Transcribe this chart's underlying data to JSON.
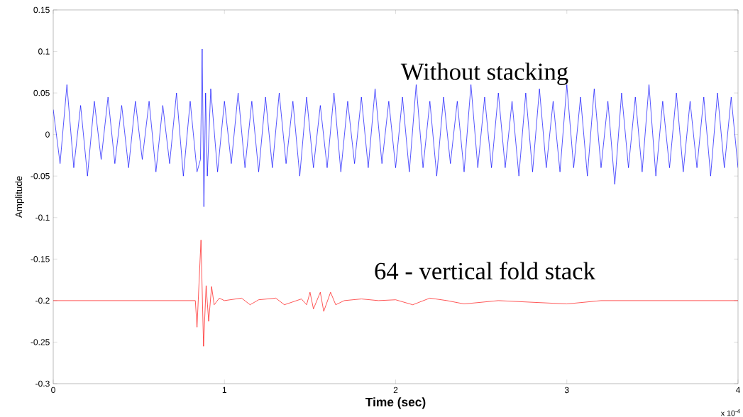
{
  "chart_data": {
    "type": "line",
    "xlabel": "Time (sec)",
    "ylabel": "Amplitude",
    "xlim": [
      0,
      4
    ],
    "xticks": [
      0,
      1,
      2,
      3,
      4
    ],
    "ylim": [
      -0.3,
      0.15
    ],
    "yticks": [
      -0.3,
      -0.25,
      -0.2,
      -0.15,
      -0.1,
      -0.05,
      0,
      0.05,
      0.1,
      0.15
    ],
    "annotations": [
      "x 10$^{-4}$"
    ],
    "series": [
      {
        "name": "Without stacking",
        "color": "#0000ff",
        "x": [
          0,
          0.04,
          0.08,
          0.12,
          0.16,
          0.2,
          0.24,
          0.28,
          0.32,
          0.36,
          0.4,
          0.44,
          0.48,
          0.52,
          0.56,
          0.6,
          0.64,
          0.68,
          0.72,
          0.76,
          0.8,
          0.84,
          0.86,
          0.87,
          0.88,
          0.89,
          0.9,
          0.92,
          0.96,
          1.0,
          1.04,
          1.08,
          1.12,
          1.16,
          1.2,
          1.24,
          1.28,
          1.32,
          1.36,
          1.4,
          1.44,
          1.48,
          1.52,
          1.56,
          1.6,
          1.64,
          1.68,
          1.72,
          1.76,
          1.8,
          1.84,
          1.88,
          1.92,
          1.96,
          2.0,
          2.04,
          2.08,
          2.12,
          2.16,
          2.2,
          2.24,
          2.28,
          2.32,
          2.36,
          2.4,
          2.44,
          2.48,
          2.52,
          2.56,
          2.6,
          2.64,
          2.68,
          2.72,
          2.76,
          2.8,
          2.84,
          2.88,
          2.92,
          2.96,
          3.0,
          3.04,
          3.08,
          3.12,
          3.16,
          3.2,
          3.24,
          3.28,
          3.32,
          3.36,
          3.4,
          3.44,
          3.48,
          3.52,
          3.56,
          3.6,
          3.64,
          3.68,
          3.72,
          3.76,
          3.8,
          3.84,
          3.88,
          3.92,
          3.96,
          4.0
        ],
        "values": [
          0.03,
          -0.035,
          0.06,
          -0.04,
          0.035,
          -0.05,
          0.04,
          -0.03,
          0.045,
          -0.035,
          0.035,
          -0.04,
          0.04,
          -0.03,
          0.04,
          -0.045,
          0.035,
          -0.035,
          0.05,
          -0.05,
          0.04,
          -0.045,
          -0.03,
          0.103,
          -0.087,
          0.05,
          -0.05,
          0.055,
          -0.045,
          0.04,
          -0.035,
          0.05,
          -0.04,
          0.04,
          -0.045,
          0.045,
          -0.04,
          0.05,
          -0.035,
          0.04,
          -0.05,
          0.045,
          -0.04,
          0.035,
          -0.04,
          0.05,
          -0.045,
          0.04,
          -0.035,
          0.045,
          -0.04,
          0.055,
          -0.035,
          0.04,
          -0.04,
          0.045,
          -0.045,
          0.06,
          -0.04,
          0.04,
          -0.05,
          0.045,
          -0.035,
          0.04,
          -0.045,
          0.06,
          -0.04,
          0.045,
          -0.04,
          0.05,
          -0.04,
          0.04,
          -0.05,
          0.05,
          -0.045,
          0.055,
          -0.04,
          0.04,
          -0.045,
          0.06,
          -0.04,
          0.045,
          -0.05,
          0.055,
          -0.04,
          0.04,
          -0.06,
          0.05,
          -0.04,
          0.045,
          -0.045,
          0.06,
          -0.05,
          0.04,
          -0.04,
          0.05,
          -0.045,
          0.04,
          -0.04,
          0.045,
          -0.05,
          0.05,
          -0.04,
          0.045,
          -0.04
        ]
      },
      {
        "name": "64 - vertical fold stack",
        "color": "#ff0000",
        "x": [
          0,
          0.83,
          0.84,
          0.863,
          0.878,
          0.893,
          0.908,
          0.925,
          0.94,
          0.97,
          1.0,
          1.1,
          1.15,
          1.2,
          1.3,
          1.35,
          1.45,
          1.48,
          1.5,
          1.52,
          1.56,
          1.58,
          1.62,
          1.65,
          1.7,
          1.8,
          1.9,
          2.0,
          2.1,
          2.2,
          2.3,
          2.4,
          2.6,
          3.0,
          3.2,
          4.0
        ],
        "values": [
          -0.2,
          -0.2,
          -0.232,
          -0.127,
          -0.255,
          -0.182,
          -0.225,
          -0.183,
          -0.205,
          -0.197,
          -0.2,
          -0.197,
          -0.205,
          -0.199,
          -0.197,
          -0.205,
          -0.198,
          -0.205,
          -0.19,
          -0.21,
          -0.19,
          -0.213,
          -0.19,
          -0.205,
          -0.2,
          -0.198,
          -0.2,
          -0.199,
          -0.205,
          -0.197,
          -0.2,
          -0.204,
          -0.2,
          -0.204,
          -0.2,
          -0.2
        ]
      }
    ]
  }
}
